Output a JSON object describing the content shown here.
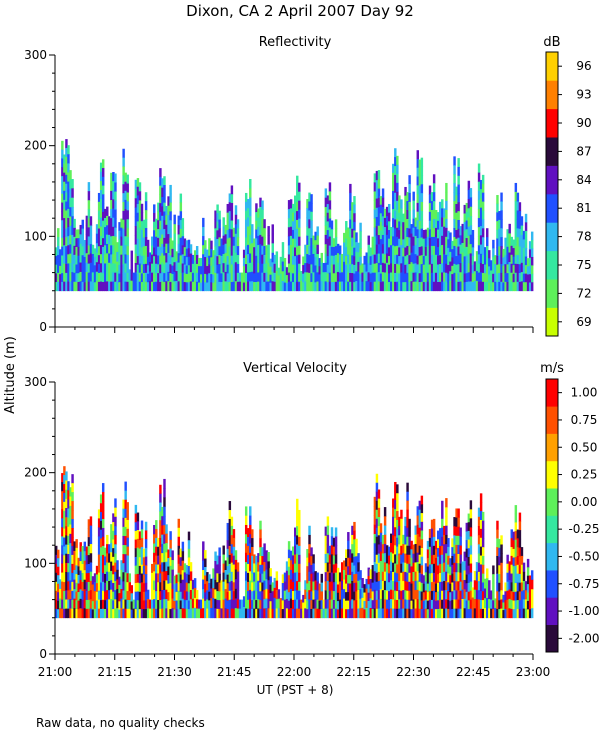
{
  "figure": {
    "title": "Dixon, CA   2 April 2007   Day   92",
    "ylabel": "Altitude (m)",
    "xlabel": "UT  (PST + 8)",
    "footnote": "Raw data, no quality checks"
  },
  "chart_data": [
    {
      "type": "heatmap",
      "title": "Reflectivity",
      "ylabel": "Altitude (m)",
      "xlabel": "UT  (PST + 8)",
      "x_range": [
        "21:00",
        "23:00"
      ],
      "x_ticks": [
        "21:00",
        "21:15",
        "21:30",
        "21:45",
        "22:00",
        "22:15",
        "22:30",
        "22:45",
        "23:00"
      ],
      "ylim": [
        0,
        300
      ],
      "y_ticks": [
        0,
        100,
        200,
        300
      ],
      "colorbar": {
        "unit": "dB",
        "ticks": [
          "69",
          "72",
          "75",
          "78",
          "81",
          "84",
          "87",
          "90",
          "93",
          "96"
        ],
        "colors": [
          "#c8ff00",
          "#5ef05a",
          "#35e8a0",
          "#30b8f0",
          "#2050ff",
          "#6010c0",
          "#2a0a3a",
          "#ff0000",
          "#ff8000",
          "#ffd000"
        ]
      },
      "data_floor_m": 40,
      "column_top_m": [
        120,
        220,
        205,
        150,
        130,
        160,
        120,
        190,
        140,
        175,
        120,
        200,
        95,
        180,
        160,
        100,
        150,
        200,
        160,
        125,
        160,
        140,
        115,
        95,
        130,
        105,
        150,
        125,
        175,
        140,
        95,
        180,
        140,
        150,
        135,
        120,
        100,
        110,
        150,
        175,
        95,
        150,
        130,
        100,
        160,
        140,
        115,
        140,
        160,
        130,
        90,
        105,
        200,
        170,
        150,
        200,
        170,
        190,
        150,
        200,
        130,
        170,
        150,
        175,
        130,
        190,
        140,
        180,
        110,
        195,
        125,
        100,
        160,
        110,
        140,
        175,
        125,
        110
      ],
      "band_colors": [
        "#5ef05a",
        "#35e8a0",
        "#30b8f0",
        "#2050ff",
        "#6010c0"
      ]
    },
    {
      "type": "heatmap",
      "title": "Vertical Velocity",
      "ylabel": "Altitude (m)",
      "xlabel": "UT  (PST + 8)",
      "x_range": [
        "21:00",
        "23:00"
      ],
      "x_ticks": [
        "21:00",
        "21:15",
        "21:30",
        "21:45",
        "22:00",
        "22:15",
        "22:30",
        "22:45",
        "23:00"
      ],
      "ylim": [
        0,
        300
      ],
      "y_ticks": [
        0,
        100,
        200,
        300
      ],
      "colorbar": {
        "unit": "m/s",
        "ticks": [
          "-2.00",
          "-1.00",
          "-0.75",
          "-0.50",
          "-0.25",
          "0.00",
          "0.25",
          "0.50",
          "0.75",
          "1.00"
        ],
        "colors": [
          "#2a0a3a",
          "#6010c0",
          "#2050ff",
          "#30b8f0",
          "#35e8a0",
          "#5ef05a",
          "#ffff00",
          "#ffa000",
          "#ff5000",
          "#ff0000"
        ]
      },
      "data_floor_m": 40,
      "column_top_m": [
        120,
        220,
        205,
        150,
        130,
        160,
        120,
        190,
        140,
        175,
        120,
        200,
        95,
        180,
        160,
        100,
        150,
        200,
        160,
        125,
        160,
        140,
        115,
        95,
        130,
        105,
        150,
        125,
        175,
        140,
        95,
        180,
        140,
        150,
        135,
        120,
        100,
        110,
        150,
        175,
        95,
        150,
        130,
        100,
        160,
        140,
        115,
        140,
        160,
        130,
        90,
        105,
        200,
        170,
        150,
        200,
        170,
        190,
        150,
        200,
        130,
        170,
        150,
        175,
        130,
        190,
        140,
        180,
        110,
        195,
        125,
        100,
        160,
        110,
        140,
        175,
        125,
        110
      ],
      "band_colors": [
        "#ff0000",
        "#ff5000",
        "#ffff00",
        "#5ef05a",
        "#2050ff",
        "#2a0a3a",
        "#6010c0",
        "#30b8f0"
      ]
    }
  ]
}
